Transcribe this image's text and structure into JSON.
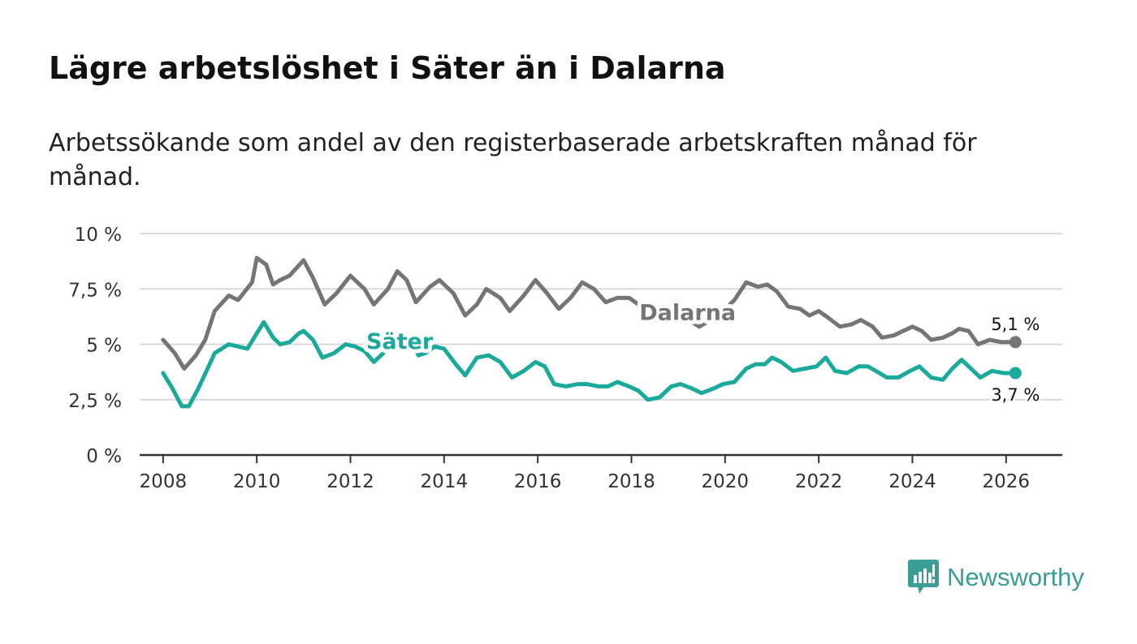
{
  "header": {
    "title": "Lägre arbetslöshet i Säter än i Dalarna",
    "subtitle": "Arbetssökande som andel av den registerbaserade arbetskraften månad för månad."
  },
  "brand": {
    "name": "Newsworthy",
    "icon": "newsworthy-logo-icon"
  },
  "colors": {
    "dalarna": "#757575",
    "sater": "#1aaa9b",
    "grid": "#d9d9d9",
    "axis": "#333333",
    "brand": "#3a9e97"
  },
  "chart_data": {
    "type": "line",
    "title": "Lägre arbetslöshet i Säter än i Dalarna",
    "subtitle": "Arbetssökande som andel av den registerbaserade arbetskraften månad för månad.",
    "xlabel": "",
    "ylabel": "",
    "xlim": [
      2007.5,
      2027.2
    ],
    "ylim": [
      0,
      10
    ],
    "grid": true,
    "legend": "inline-labels",
    "x_ticks": [
      2008,
      2010,
      2012,
      2014,
      2016,
      2018,
      2020,
      2022,
      2024,
      2026
    ],
    "x_tick_labels": [
      "2008",
      "2010",
      "2012",
      "2014",
      "2016",
      "2018",
      "2020",
      "2022",
      "2024",
      "2026"
    ],
    "y_ticks": [
      0,
      2.5,
      5,
      7.5,
      10
    ],
    "y_tick_labels": [
      "0 %",
      "2,5 %",
      "5 %",
      "7,5 %",
      "10 %"
    ],
    "series": [
      {
        "name": "Dalarna",
        "color": "#757575",
        "end_label": "5,1 %",
        "points": [
          [
            2008.0,
            5.2
          ],
          [
            2008.25,
            4.6
          ],
          [
            2008.45,
            3.9
          ],
          [
            2008.7,
            4.5
          ],
          [
            2008.9,
            5.2
          ],
          [
            2009.1,
            6.5
          ],
          [
            2009.4,
            7.2
          ],
          [
            2009.6,
            7.0
          ],
          [
            2009.9,
            7.8
          ],
          [
            2010.0,
            8.9
          ],
          [
            2010.2,
            8.6
          ],
          [
            2010.35,
            7.7
          ],
          [
            2010.5,
            7.9
          ],
          [
            2010.7,
            8.1
          ],
          [
            2011.0,
            8.8
          ],
          [
            2011.2,
            8.0
          ],
          [
            2011.45,
            6.8
          ],
          [
            2011.7,
            7.3
          ],
          [
            2012.0,
            8.1
          ],
          [
            2012.3,
            7.5
          ],
          [
            2012.5,
            6.8
          ],
          [
            2012.8,
            7.5
          ],
          [
            2013.0,
            8.3
          ],
          [
            2013.2,
            7.9
          ],
          [
            2013.4,
            6.9
          ],
          [
            2013.7,
            7.6
          ],
          [
            2013.9,
            7.9
          ],
          [
            2014.2,
            7.3
          ],
          [
            2014.45,
            6.3
          ],
          [
            2014.7,
            6.8
          ],
          [
            2014.9,
            7.5
          ],
          [
            2015.2,
            7.1
          ],
          [
            2015.4,
            6.5
          ],
          [
            2015.7,
            7.2
          ],
          [
            2015.95,
            7.9
          ],
          [
            2016.2,
            7.3
          ],
          [
            2016.45,
            6.6
          ],
          [
            2016.7,
            7.1
          ],
          [
            2016.95,
            7.8
          ],
          [
            2017.2,
            7.5
          ],
          [
            2017.45,
            6.9
          ],
          [
            2017.7,
            7.1
          ],
          [
            2017.95,
            7.1
          ],
          [
            2018.15,
            6.8
          ],
          [
            2018.3,
            6.1
          ],
          [
            2018.6,
            6.1
          ],
          [
            2018.9,
            6.1
          ],
          [
            2019.3,
            6.0
          ],
          [
            2019.45,
            5.8
          ],
          [
            2019.7,
            6.1
          ],
          [
            2019.9,
            6.4
          ],
          [
            2020.2,
            7.0
          ],
          [
            2020.45,
            7.8
          ],
          [
            2020.7,
            7.6
          ],
          [
            2020.9,
            7.7
          ],
          [
            2021.1,
            7.4
          ],
          [
            2021.35,
            6.7
          ],
          [
            2021.6,
            6.6
          ],
          [
            2021.8,
            6.3
          ],
          [
            2022.0,
            6.5
          ],
          [
            2022.2,
            6.2
          ],
          [
            2022.45,
            5.8
          ],
          [
            2022.7,
            5.9
          ],
          [
            2022.9,
            6.1
          ],
          [
            2023.15,
            5.8
          ],
          [
            2023.35,
            5.3
          ],
          [
            2023.6,
            5.4
          ],
          [
            2023.8,
            5.6
          ],
          [
            2024.0,
            5.8
          ],
          [
            2024.2,
            5.6
          ],
          [
            2024.4,
            5.2
          ],
          [
            2024.65,
            5.3
          ],
          [
            2024.85,
            5.5
          ],
          [
            2025.0,
            5.7
          ],
          [
            2025.2,
            5.6
          ],
          [
            2025.4,
            5.0
          ],
          [
            2025.65,
            5.2
          ],
          [
            2025.9,
            5.1
          ],
          [
            2026.2,
            5.1
          ]
        ]
      },
      {
        "name": "Säter",
        "color": "#1aaa9b",
        "end_label": "3,7 %",
        "points": [
          [
            2008.0,
            3.7
          ],
          [
            2008.2,
            3.0
          ],
          [
            2008.4,
            2.2
          ],
          [
            2008.55,
            2.2
          ],
          [
            2008.75,
            3.0
          ],
          [
            2008.95,
            3.9
          ],
          [
            2009.1,
            4.6
          ],
          [
            2009.4,
            5.0
          ],
          [
            2009.6,
            4.9
          ],
          [
            2009.8,
            4.8
          ],
          [
            2010.0,
            5.5
          ],
          [
            2010.15,
            6.0
          ],
          [
            2010.35,
            5.3
          ],
          [
            2010.5,
            5.0
          ],
          [
            2010.7,
            5.1
          ],
          [
            2010.9,
            5.5
          ],
          [
            2011.0,
            5.6
          ],
          [
            2011.2,
            5.2
          ],
          [
            2011.4,
            4.4
          ],
          [
            2011.65,
            4.6
          ],
          [
            2011.9,
            5.0
          ],
          [
            2012.1,
            4.9
          ],
          [
            2012.3,
            4.7
          ],
          [
            2012.5,
            4.2
          ],
          [
            2012.7,
            4.6
          ],
          [
            2012.95,
            5.3
          ],
          [
            2013.15,
            5.4
          ],
          [
            2013.3,
            5.2
          ],
          [
            2013.45,
            4.5
          ],
          [
            2013.6,
            4.6
          ],
          [
            2013.8,
            4.9
          ],
          [
            2014.0,
            4.8
          ],
          [
            2014.25,
            4.1
          ],
          [
            2014.45,
            3.6
          ],
          [
            2014.7,
            4.4
          ],
          [
            2014.95,
            4.5
          ],
          [
            2015.2,
            4.2
          ],
          [
            2015.45,
            3.5
          ],
          [
            2015.7,
            3.8
          ],
          [
            2015.95,
            4.2
          ],
          [
            2016.15,
            4.0
          ],
          [
            2016.35,
            3.2
          ],
          [
            2016.6,
            3.1
          ],
          [
            2016.85,
            3.2
          ],
          [
            2017.05,
            3.2
          ],
          [
            2017.3,
            3.1
          ],
          [
            2017.5,
            3.1
          ],
          [
            2017.7,
            3.3
          ],
          [
            2017.95,
            3.1
          ],
          [
            2018.15,
            2.9
          ],
          [
            2018.35,
            2.5
          ],
          [
            2018.6,
            2.6
          ],
          [
            2018.85,
            3.1
          ],
          [
            2019.05,
            3.2
          ],
          [
            2019.3,
            3.0
          ],
          [
            2019.5,
            2.8
          ],
          [
            2019.75,
            3.0
          ],
          [
            2019.95,
            3.2
          ],
          [
            2020.2,
            3.3
          ],
          [
            2020.45,
            3.9
          ],
          [
            2020.65,
            4.1
          ],
          [
            2020.85,
            4.1
          ],
          [
            2021.0,
            4.4
          ],
          [
            2021.2,
            4.2
          ],
          [
            2021.45,
            3.8
          ],
          [
            2021.7,
            3.9
          ],
          [
            2021.95,
            4.0
          ],
          [
            2022.15,
            4.4
          ],
          [
            2022.35,
            3.8
          ],
          [
            2022.6,
            3.7
          ],
          [
            2022.85,
            4.0
          ],
          [
            2023.05,
            4.0
          ],
          [
            2023.3,
            3.7
          ],
          [
            2023.45,
            3.5
          ],
          [
            2023.7,
            3.5
          ],
          [
            2023.95,
            3.8
          ],
          [
            2024.15,
            4.0
          ],
          [
            2024.4,
            3.5
          ],
          [
            2024.65,
            3.4
          ],
          [
            2024.85,
            3.9
          ],
          [
            2025.05,
            4.3
          ],
          [
            2025.25,
            3.9
          ],
          [
            2025.45,
            3.5
          ],
          [
            2025.7,
            3.8
          ],
          [
            2025.95,
            3.7
          ],
          [
            2026.2,
            3.7
          ]
        ]
      }
    ],
    "annotations": [
      {
        "text": "Dalarna",
        "series": "Dalarna",
        "x": 2019.2,
        "y": 6.1
      },
      {
        "text": "Säter",
        "series": "Säter",
        "x": 2013.05,
        "y": 4.8
      }
    ]
  }
}
